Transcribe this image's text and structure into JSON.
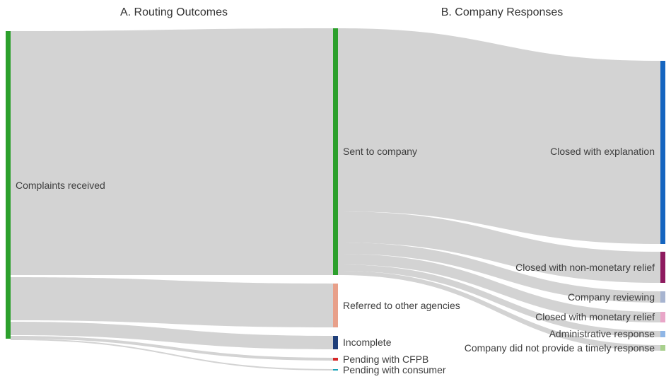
{
  "panels": {
    "a_title": "A. Routing Outcomes",
    "b_title": "B. Company Responses"
  },
  "nodes": {
    "complaints_received": {
      "label": "Complaints received",
      "color": "#2ca02c"
    },
    "sent_to_company": {
      "label": "Sent to company",
      "color": "#2ca02c"
    },
    "referred": {
      "label": "Referred to other agencies",
      "color": "#e8a08a"
    },
    "incomplete": {
      "label": "Incomplete",
      "color": "#1f3f7a"
    },
    "pending_cfpb": {
      "label": "Pending with CFPB",
      "color": "#d62728"
    },
    "pending_consumer": {
      "label": "Pending with consumer",
      "color": "#17a2b8"
    },
    "closed_explanation": {
      "label": "Closed with explanation",
      "color": "#1565c0"
    },
    "closed_nonmonetary": {
      "label": "Closed with non-monetary relief",
      "color": "#8e1a5f"
    },
    "company_reviewing": {
      "label": "Company reviewing",
      "color": "#a7b4d0"
    },
    "closed_monetary": {
      "label": "Closed with monetary relief",
      "color": "#e9a6c8"
    },
    "administrative": {
      "label": "Administrative response",
      "color": "#8fb6e6"
    },
    "no_timely": {
      "label": "Company did not provide a timely response",
      "color": "#a8d08d"
    }
  },
  "link_color": "#d3d3d3"
}
